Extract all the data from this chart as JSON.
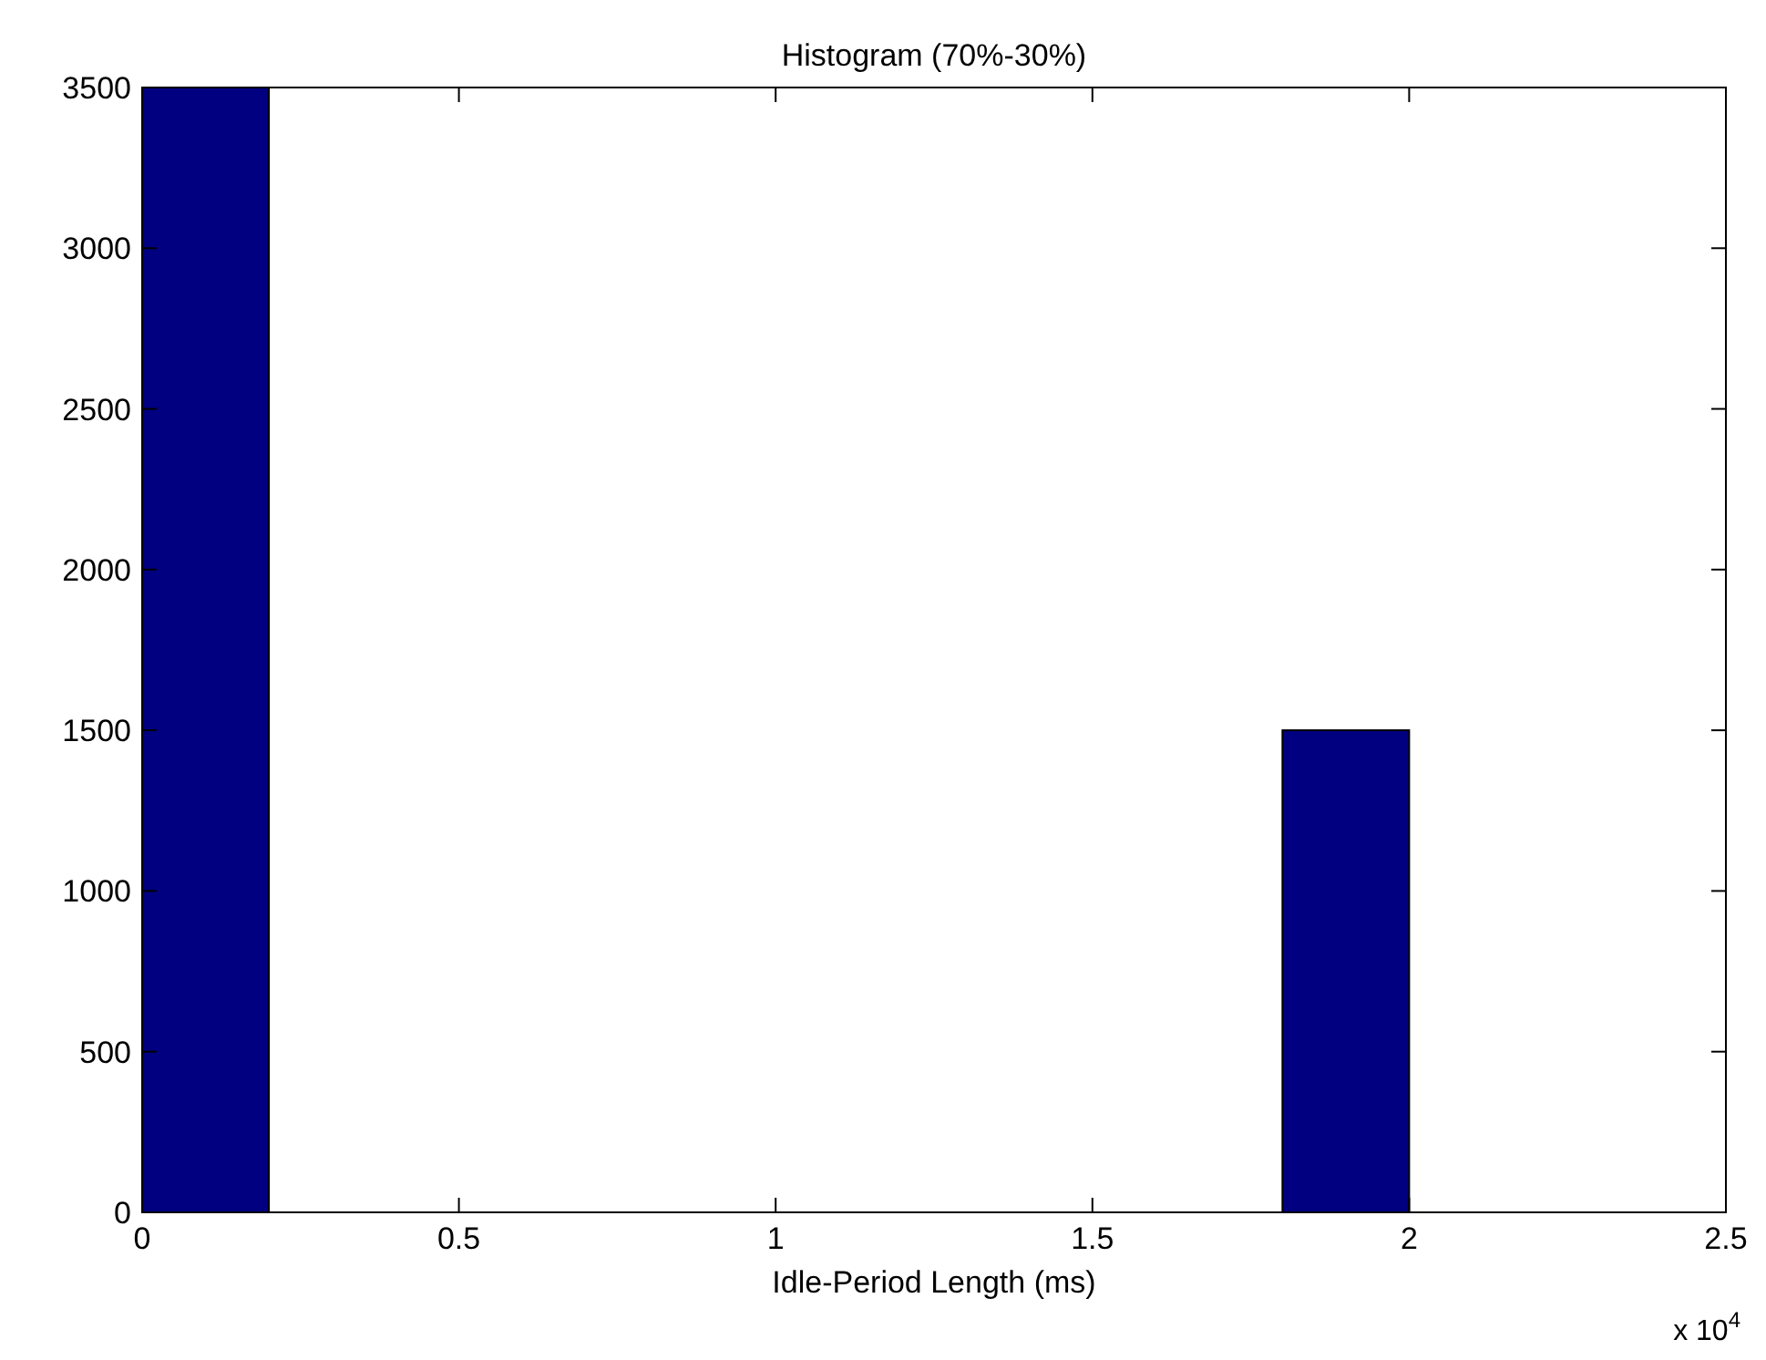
{
  "chart_data": {
    "type": "histogram",
    "title": "Histogram (70%-30%)",
    "xlabel": "Idle-Period Length (ms)",
    "bins": [
      0,
      0.2,
      0.4,
      0.6,
      0.8,
      1.0,
      1.2,
      1.4,
      1.6,
      1.8,
      2.0
    ],
    "values": [
      3500,
      0,
      0,
      0,
      0,
      0,
      0,
      0,
      0,
      1500
    ],
    "color": "#000080",
    "xlim": [
      0,
      2.5
    ],
    "xticks": [
      0,
      0.5,
      1,
      1.5,
      2,
      2.5
    ],
    "ylim": [
      0,
      3500
    ],
    "yticks": [
      0,
      500,
      1000,
      1500,
      2000,
      2500,
      3000,
      3500
    ],
    "annotations": [
      "x 10$^{4}$"
    ],
    "grid": false
  }
}
